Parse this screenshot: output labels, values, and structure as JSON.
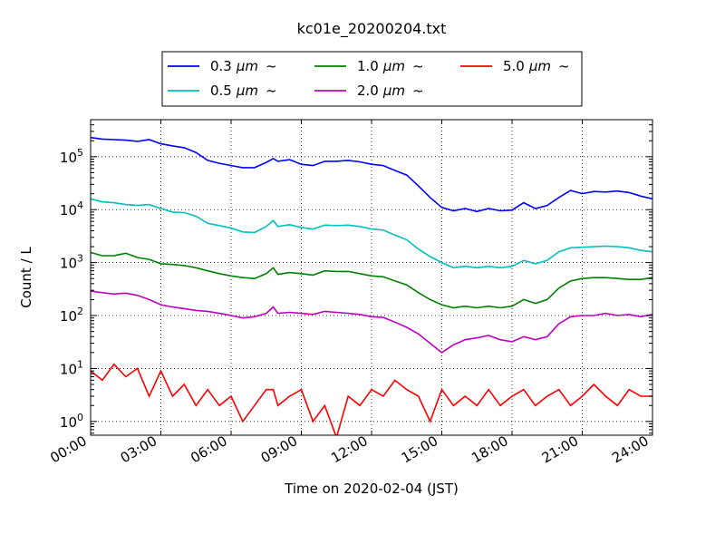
{
  "chart_data": {
    "type": "line",
    "title": "kc01e_20200204.txt",
    "xlabel": "Time on 2020-02-04 (JST)",
    "ylabel": "Count / L",
    "x_unit": "hours",
    "xlim": [
      0,
      24
    ],
    "x_ticks": [
      {
        "value": 0,
        "label": "00:00"
      },
      {
        "value": 3,
        "label": "03:00"
      },
      {
        "value": 6,
        "label": "06:00"
      },
      {
        "value": 9,
        "label": "09:00"
      },
      {
        "value": 12,
        "label": "12:00"
      },
      {
        "value": 15,
        "label": "15:00"
      },
      {
        "value": 18,
        "label": "18:00"
      },
      {
        "value": 21,
        "label": "21:00"
      },
      {
        "value": 24,
        "label": "24:00"
      }
    ],
    "y_scale": "log",
    "ylim": [
      0.55,
      500000
    ],
    "y_ticks": [
      {
        "value": 1,
        "base": "10",
        "exp": "0"
      },
      {
        "value": 10,
        "base": "10",
        "exp": "1"
      },
      {
        "value": 100,
        "base": "10",
        "exp": "2"
      },
      {
        "value": 1000,
        "base": "10",
        "exp": "3"
      },
      {
        "value": 10000,
        "base": "10",
        "exp": "4"
      },
      {
        "value": 100000,
        "base": "10",
        "exp": "5"
      }
    ],
    "grid": true,
    "legend_placement": "top-center",
    "legend_unit": "μm",
    "legend_suffix": "~",
    "series": [
      {
        "name": "0.3",
        "color": "#0000ff",
        "points": [
          [
            0,
            230000
          ],
          [
            0.5,
            215000
          ],
          [
            1,
            210000
          ],
          [
            1.5,
            205000
          ],
          [
            2,
            195000
          ],
          [
            2.5,
            210000
          ],
          [
            3,
            175000
          ],
          [
            3.5,
            160000
          ],
          [
            4,
            148000
          ],
          [
            4.5,
            120000
          ],
          [
            5,
            85000
          ],
          [
            5.5,
            75000
          ],
          [
            6,
            68000
          ],
          [
            6.5,
            62000
          ],
          [
            7,
            62000
          ],
          [
            7.5,
            78000
          ],
          [
            7.8,
            92000
          ],
          [
            8,
            82000
          ],
          [
            8.5,
            88000
          ],
          [
            9,
            72000
          ],
          [
            9.5,
            68000
          ],
          [
            10,
            82000
          ],
          [
            10.5,
            82000
          ],
          [
            11,
            85000
          ],
          [
            11.5,
            80000
          ],
          [
            12,
            72000
          ],
          [
            12.5,
            68000
          ],
          [
            13,
            55000
          ],
          [
            13.5,
            45000
          ],
          [
            14,
            28000
          ],
          [
            14.5,
            17000
          ],
          [
            15,
            11000
          ],
          [
            15.5,
            9500
          ],
          [
            16,
            10500
          ],
          [
            16.5,
            9200
          ],
          [
            17,
            10500
          ],
          [
            17.5,
            9500
          ],
          [
            18,
            9800
          ],
          [
            18.5,
            13500
          ],
          [
            19,
            10500
          ],
          [
            19.5,
            12000
          ],
          [
            20,
            17000
          ],
          [
            20.5,
            23000
          ],
          [
            21,
            20000
          ],
          [
            21.5,
            22000
          ],
          [
            22,
            21500
          ],
          [
            22.5,
            22500
          ],
          [
            23,
            21000
          ],
          [
            23.5,
            18000
          ],
          [
            24,
            16000
          ]
        ]
      },
      {
        "name": "0.5",
        "color": "#00bfbf",
        "points": [
          [
            0,
            16000
          ],
          [
            0.5,
            14000
          ],
          [
            1,
            13500
          ],
          [
            1.5,
            12500
          ],
          [
            2,
            12000
          ],
          [
            2.5,
            12500
          ],
          [
            3,
            10500
          ],
          [
            3.5,
            9000
          ],
          [
            4,
            8800
          ],
          [
            4.5,
            7500
          ],
          [
            5,
            5500
          ],
          [
            5.5,
            5000
          ],
          [
            6,
            4500
          ],
          [
            6.5,
            3800
          ],
          [
            7,
            3700
          ],
          [
            7.5,
            4800
          ],
          [
            7.8,
            6200
          ],
          [
            8,
            4800
          ],
          [
            8.5,
            5200
          ],
          [
            9,
            4600
          ],
          [
            9.5,
            4300
          ],
          [
            10,
            5100
          ],
          [
            10.5,
            5000
          ],
          [
            11,
            5100
          ],
          [
            11.5,
            4800
          ],
          [
            12,
            4300
          ],
          [
            12.5,
            4100
          ],
          [
            13,
            3300
          ],
          [
            13.5,
            2700
          ],
          [
            14,
            1800
          ],
          [
            14.5,
            1300
          ],
          [
            15,
            1000
          ],
          [
            15.5,
            800
          ],
          [
            16,
            850
          ],
          [
            16.5,
            800
          ],
          [
            17,
            850
          ],
          [
            17.5,
            800
          ],
          [
            18,
            850
          ],
          [
            18.5,
            1100
          ],
          [
            19,
            950
          ],
          [
            19.5,
            1100
          ],
          [
            20,
            1600
          ],
          [
            20.5,
            1900
          ],
          [
            21,
            1950
          ],
          [
            21.5,
            2000
          ],
          [
            22,
            2050
          ],
          [
            22.5,
            2000
          ],
          [
            23,
            1900
          ],
          [
            23.5,
            1700
          ],
          [
            24,
            1600
          ]
        ]
      },
      {
        "name": "1.0",
        "color": "#008000",
        "points": [
          [
            0,
            1550
          ],
          [
            0.5,
            1350
          ],
          [
            1,
            1350
          ],
          [
            1.5,
            1500
          ],
          [
            2,
            1250
          ],
          [
            2.5,
            1150
          ],
          [
            3,
            950
          ],
          [
            3.5,
            920
          ],
          [
            4,
            880
          ],
          [
            4.5,
            800
          ],
          [
            5,
            700
          ],
          [
            5.5,
            620
          ],
          [
            6,
            560
          ],
          [
            6.5,
            520
          ],
          [
            7,
            500
          ],
          [
            7.5,
            620
          ],
          [
            7.8,
            800
          ],
          [
            8,
            600
          ],
          [
            8.5,
            650
          ],
          [
            9,
            620
          ],
          [
            9.5,
            580
          ],
          [
            10,
            700
          ],
          [
            10.5,
            680
          ],
          [
            11,
            680
          ],
          [
            11.5,
            620
          ],
          [
            12,
            560
          ],
          [
            12.5,
            540
          ],
          [
            13,
            450
          ],
          [
            13.5,
            380
          ],
          [
            14,
            270
          ],
          [
            14.5,
            200
          ],
          [
            15,
            160
          ],
          [
            15.5,
            140
          ],
          [
            16,
            150
          ],
          [
            16.5,
            140
          ],
          [
            17,
            150
          ],
          [
            17.5,
            140
          ],
          [
            18,
            150
          ],
          [
            18.5,
            200
          ],
          [
            19,
            170
          ],
          [
            19.5,
            200
          ],
          [
            20,
            330
          ],
          [
            20.5,
            450
          ],
          [
            21,
            500
          ],
          [
            21.5,
            520
          ],
          [
            22,
            520
          ],
          [
            22.5,
            500
          ],
          [
            23,
            480
          ],
          [
            23.5,
            480
          ],
          [
            24,
            520
          ]
        ]
      },
      {
        "name": "2.0",
        "color": "#bf00bf",
        "points": [
          [
            0,
            290
          ],
          [
            0.5,
            270
          ],
          [
            1,
            255
          ],
          [
            1.5,
            265
          ],
          [
            2,
            240
          ],
          [
            2.5,
            200
          ],
          [
            3,
            160
          ],
          [
            3.5,
            145
          ],
          [
            4,
            135
          ],
          [
            4.5,
            125
          ],
          [
            5,
            120
          ],
          [
            5.5,
            110
          ],
          [
            6,
            100
          ],
          [
            6.5,
            90
          ],
          [
            7,
            95
          ],
          [
            7.5,
            110
          ],
          [
            7.8,
            145
          ],
          [
            8,
            110
          ],
          [
            8.5,
            115
          ],
          [
            9,
            110
          ],
          [
            9.5,
            105
          ],
          [
            10,
            120
          ],
          [
            10.5,
            115
          ],
          [
            11,
            110
          ],
          [
            11.5,
            105
          ],
          [
            12,
            95
          ],
          [
            12.5,
            92
          ],
          [
            13,
            75
          ],
          [
            13.5,
            60
          ],
          [
            14,
            45
          ],
          [
            14.5,
            30
          ],
          [
            15,
            20
          ],
          [
            15.5,
            28
          ],
          [
            16,
            35
          ],
          [
            16.5,
            38
          ],
          [
            17,
            42
          ],
          [
            17.5,
            35
          ],
          [
            18,
            32
          ],
          [
            18.5,
            40
          ],
          [
            19,
            35
          ],
          [
            19.5,
            40
          ],
          [
            20,
            70
          ],
          [
            20.5,
            95
          ],
          [
            21,
            100
          ],
          [
            21.5,
            100
          ],
          [
            22,
            110
          ],
          [
            22.5,
            100
          ],
          [
            23,
            105
          ],
          [
            23.5,
            95
          ],
          [
            24,
            105
          ]
        ]
      },
      {
        "name": "5.0",
        "color": "#ff0000",
        "points": [
          [
            0,
            9
          ],
          [
            0.5,
            6
          ],
          [
            1,
            12
          ],
          [
            1.5,
            7
          ],
          [
            2,
            10
          ],
          [
            2.5,
            3
          ],
          [
            3,
            9
          ],
          [
            3.5,
            3
          ],
          [
            4,
            5
          ],
          [
            4.5,
            2
          ],
          [
            5,
            4
          ],
          [
            5.5,
            2
          ],
          [
            6,
            3
          ],
          [
            6.5,
            1
          ],
          [
            7,
            2
          ],
          [
            7.5,
            4
          ],
          [
            7.8,
            4
          ],
          [
            8,
            2
          ],
          [
            8.5,
            3
          ],
          [
            9,
            4
          ],
          [
            9.5,
            1
          ],
          [
            10,
            2
          ],
          [
            10.5,
            0.5
          ],
          [
            11,
            3
          ],
          [
            11.5,
            2
          ],
          [
            12,
            4
          ],
          [
            12.5,
            3
          ],
          [
            13,
            6
          ],
          [
            13.5,
            4
          ],
          [
            14,
            3
          ],
          [
            14.5,
            1
          ],
          [
            15,
            4
          ],
          [
            15.5,
            2
          ],
          [
            16,
            3
          ],
          [
            16.5,
            2
          ],
          [
            17,
            4
          ],
          [
            17.5,
            2
          ],
          [
            18,
            3
          ],
          [
            18.5,
            4
          ],
          [
            19,
            2
          ],
          [
            19.5,
            3
          ],
          [
            20,
            4
          ],
          [
            20.5,
            2
          ],
          [
            21,
            3
          ],
          [
            21.5,
            5
          ],
          [
            22,
            3
          ],
          [
            22.5,
            2
          ],
          [
            23,
            4
          ],
          [
            23.5,
            3
          ],
          [
            24,
            3
          ]
        ]
      }
    ]
  }
}
